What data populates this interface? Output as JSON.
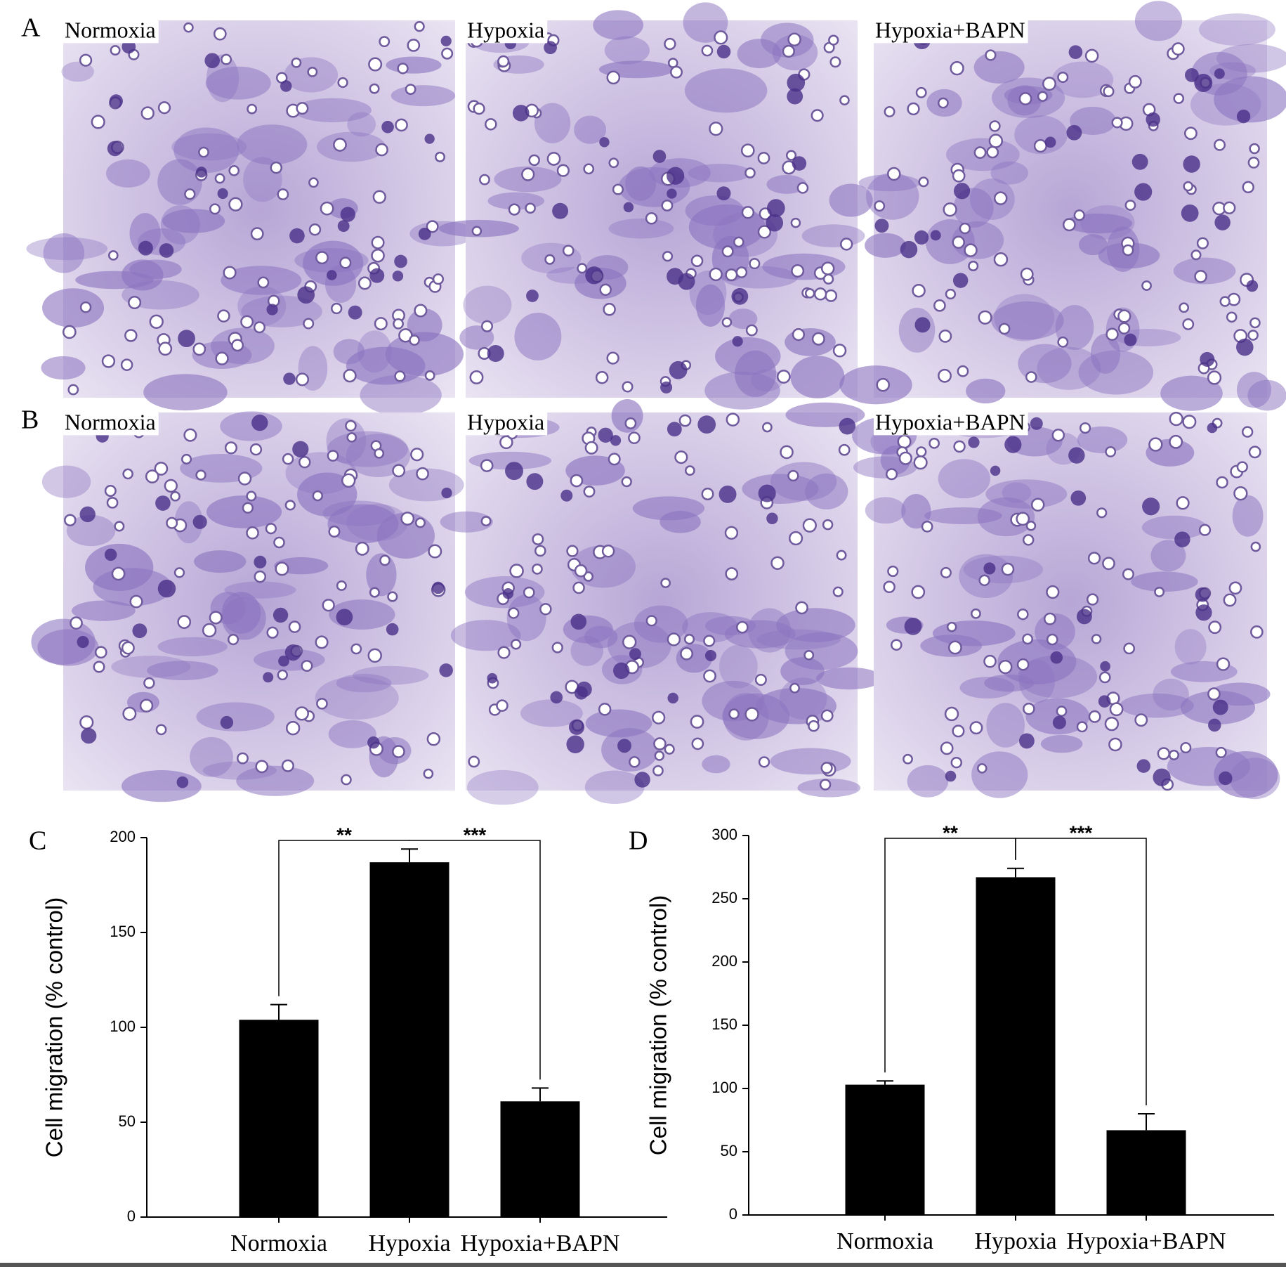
{
  "panels": [
    {
      "label": "A",
      "images": [
        "Normoxia",
        "Hypoxia",
        "Hypoxia+BAPN"
      ]
    },
    {
      "label": "B",
      "images": [
        "Normoxia",
        "Hypoxia",
        "Hypoxia+BAPN"
      ]
    }
  ],
  "chart_data": [
    {
      "type": "bar",
      "label": "C",
      "y_label": "Cell migration (% control)",
      "categories": [
        "Normoxia",
        "Hypoxia",
        "Hypoxia+BAPN"
      ],
      "values": [
        104,
        187,
        61
      ],
      "errors": [
        8,
        7,
        7
      ],
      "color": "#000000",
      "ylim": [
        0,
        200
      ],
      "yticks": [
        0,
        50,
        100,
        150,
        200
      ],
      "annotations": [
        "**",
        "***"
      ]
    },
    {
      "type": "bar",
      "label": "D",
      "y_label": "Cell migration (% control)",
      "categories": [
        "Normoxia",
        "Hypoxia",
        "Hypoxia+BAPN"
      ],
      "values": [
        103,
        267,
        67
      ],
      "errors": [
        3,
        7,
        13
      ],
      "color": "#000000",
      "ylim": [
        0,
        300
      ],
      "yticks": [
        0,
        50,
        100,
        150,
        200,
        250,
        300
      ],
      "annotations": [
        "**",
        "***"
      ]
    }
  ]
}
